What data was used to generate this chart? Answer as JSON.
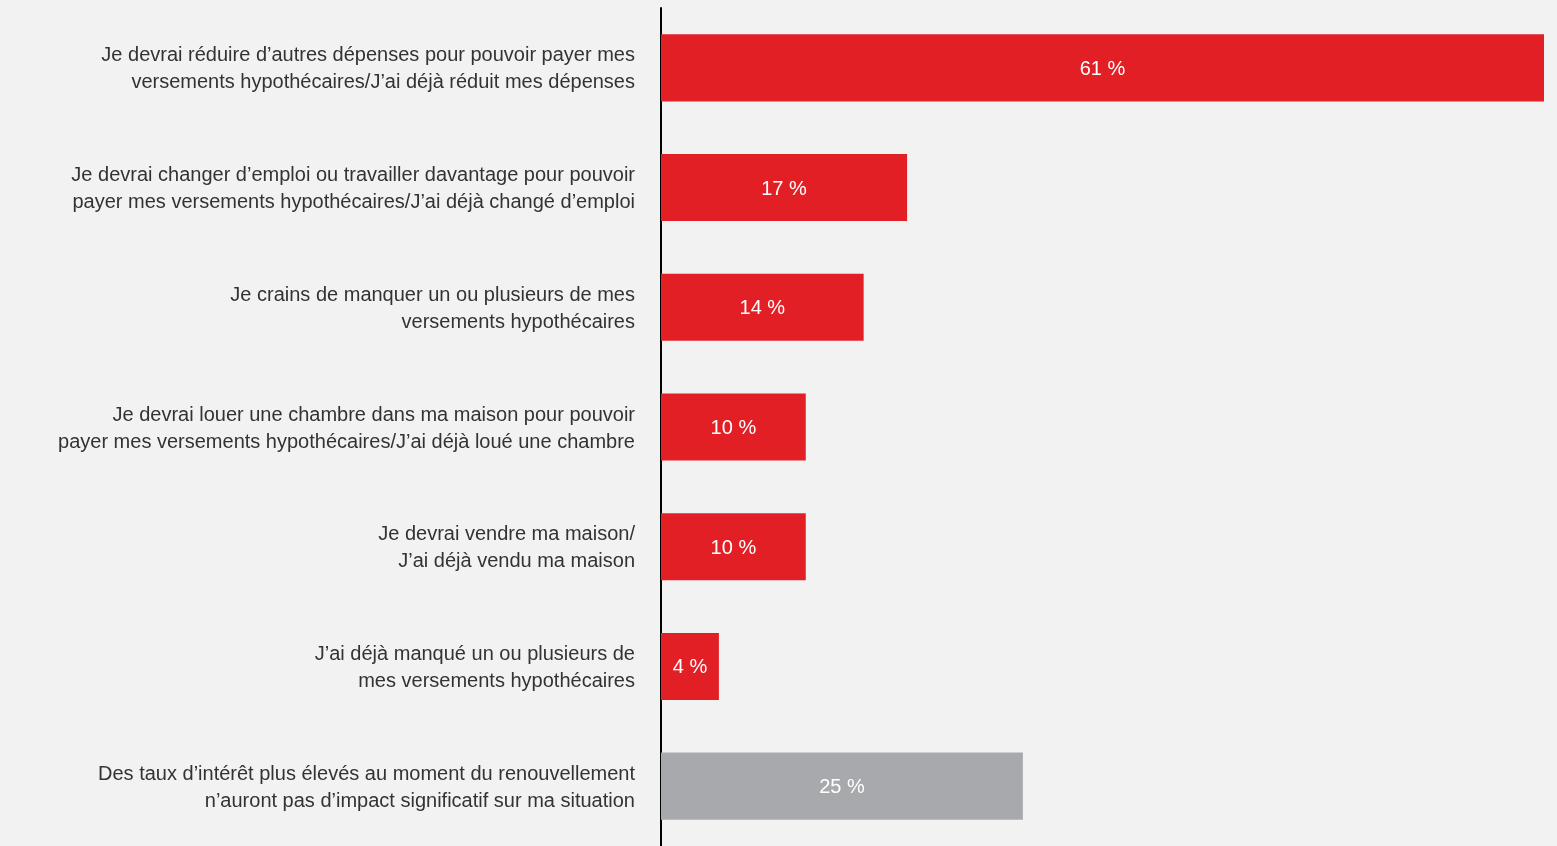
{
  "chart_data": {
    "type": "bar",
    "orientation": "horizontal",
    "categories": [
      "Je devrai réduire d’autres dépenses pour pouvoir payer mes\nversements hypothécaires/J’ai déjà réduit mes dépenses",
      "Je devrai changer d’emploi ou travailler davantage pour pouvoir\npayer mes versements hypothécaires/J’ai déjà changé d’emploi",
      "Je crains de manquer un ou plusieurs de mes\nversements hypothécaires",
      "Je devrai louer une chambre dans ma maison pour pouvoir\npayer mes versements hypothécaires/J’ai déjà loué une chambre",
      "Je devrai vendre ma maison/\nJ’ai déjà vendu ma maison",
      "J’ai déjà manqué un ou plusieurs de\nmes versements hypothécaires",
      "Des taux d’intérêt plus élevés au moment du renouvellement\nn’auront pas d’impact significatif sur ma situation"
    ],
    "values": [
      61,
      17,
      14,
      10,
      10,
      4,
      25
    ],
    "value_labels": [
      "61 %",
      "17 %",
      "14 %",
      "10 %",
      "10 %",
      "4 %",
      "25 %"
    ],
    "colors": [
      "#e31f26",
      "#e31f26",
      "#e31f26",
      "#e31f26",
      "#e31f26",
      "#e31f26",
      "#a7a9ac"
    ]
  }
}
